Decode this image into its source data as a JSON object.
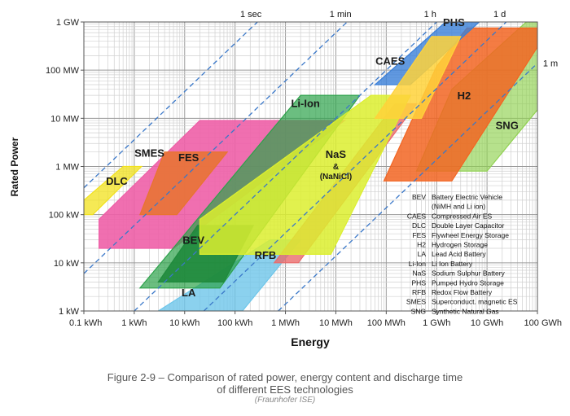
{
  "chart_data": {
    "type": "area",
    "title": "",
    "xlabel": "Energy",
    "ylabel": "Rated Power",
    "x_scale": "log",
    "y_scale": "log",
    "x_unit": "kWh",
    "y_unit": "kW",
    "xlim": [
      0.1,
      100000000
    ],
    "ylim": [
      1,
      1000000
    ],
    "x_ticks": [
      {
        "value": 0.1,
        "label": "0.1 kWh"
      },
      {
        "value": 1,
        "label": "1 kWh"
      },
      {
        "value": 10,
        "label": "10 kWh"
      },
      {
        "value": 100,
        "label": "100 kWh"
      },
      {
        "value": 1000,
        "label": "1 MWh"
      },
      {
        "value": 10000,
        "label": "10 MWh"
      },
      {
        "value": 100000,
        "label": "100 MWh"
      },
      {
        "value": 1000000,
        "label": "1 GWh"
      },
      {
        "value": 10000000,
        "label": "10 GWh"
      },
      {
        "value": 100000000,
        "label": "100 GWh"
      }
    ],
    "y_ticks": [
      {
        "value": 1,
        "label": "1 kW"
      },
      {
        "value": 10,
        "label": "10 kW"
      },
      {
        "value": 100,
        "label": "100 kW"
      },
      {
        "value": 1000,
        "label": "1 MW"
      },
      {
        "value": 10000,
        "label": "10 MW"
      },
      {
        "value": 100000,
        "label": "100 MW"
      },
      {
        "value": 1000000,
        "label": "1 GW"
      }
    ],
    "discharge_time_lines": [
      {
        "label": "1 sec",
        "hours": 0.000278
      },
      {
        "label": "1 min",
        "hours": 0.0167
      },
      {
        "label": "1 h",
        "hours": 1
      },
      {
        "label": "1 d",
        "hours": 24
      },
      {
        "label": "1 m",
        "hours": 720
      }
    ],
    "regions": [
      {
        "label": "SNG",
        "color": "#8fd14f",
        "opacity": 0.65,
        "label_at": [
          25000000,
          6000
        ],
        "points": [
          [
            400000,
            800
          ],
          [
            10000000,
            800
          ],
          [
            100000000,
            15000
          ],
          [
            100000000,
            1000000
          ],
          [
            60000000,
            1000000
          ],
          [
            2000000,
            40000
          ]
        ]
      },
      {
        "label": "H2",
        "color": "#f26522",
        "opacity": 0.85,
        "label_at": [
          3500000,
          25000
        ],
        "points": [
          [
            90000,
            500
          ],
          [
            2000000,
            500
          ],
          [
            100000000,
            300000
          ],
          [
            100000000,
            750000
          ],
          [
            4000000,
            750000
          ],
          [
            1000000,
            120000
          ]
        ]
      },
      {
        "label": "FES",
        "color": "#ee5fa7",
        "opacity": 0.9,
        "label_at": [
          12,
          1300
        ],
        "points": [
          [
            0.2,
            20
          ],
          [
            6,
            20
          ],
          [
            15000,
            9000
          ],
          [
            1000,
            9000
          ],
          [
            20,
            9000
          ],
          [
            0.2,
            80
          ]
        ]
      },
      {
        "label": "SMES",
        "color": "#e8742e",
        "opacity": 0.85,
        "label_at": [
          2,
          1600
        ],
        "points": [
          [
            1.3,
            100
          ],
          [
            7,
            100
          ],
          [
            70,
            2000
          ],
          [
            4,
            2000
          ]
        ]
      },
      {
        "label": "DLC",
        "color": "#f2e21c",
        "opacity": 0.75,
        "label_at": [
          0.45,
          420
        ],
        "points": [
          [
            0.1,
            100
          ],
          [
            0.15,
            100
          ],
          [
            1.4,
            1000
          ],
          [
            0.6,
            1000
          ],
          [
            0.1,
            200
          ]
        ]
      },
      {
        "label": "LA",
        "color": "#6ec6ea",
        "opacity": 0.8,
        "label_at": [
          12,
          2
        ],
        "points": [
          [
            3,
            1
          ],
          [
            140,
            1
          ],
          [
            2000,
            30
          ],
          [
            500,
            30
          ]
        ]
      },
      {
        "label": "RFB",
        "color": "#ea6b6b",
        "opacity": 0.8,
        "label_at": [
          400,
          12
        ],
        "points": [
          [
            600,
            10
          ],
          [
            1800,
            10
          ],
          [
            400000,
            20000
          ],
          [
            150000,
            20000
          ]
        ]
      },
      {
        "label": "Li-Ion",
        "color": "#2ca24a",
        "opacity": 0.7,
        "label_at": [
          2500,
          17000
        ],
        "points": [
          [
            1.3,
            3
          ],
          [
            50,
            3
          ],
          [
            30000,
            30000
          ],
          [
            2000,
            30000
          ]
        ]
      },
      {
        "label": "BEV",
        "color": "#1f8a3c",
        "opacity": 0.9,
        "label_at": [
          15,
          25
        ],
        "points": [
          [
            3,
            4
          ],
          [
            60,
            4
          ],
          [
            230,
            60
          ],
          [
            18,
            60
          ]
        ]
      },
      {
        "label": "NaS",
        "sub_label_1": "&",
        "sub_label_2": "(NaNiCl)",
        "color": "#dcef2f",
        "opacity": 0.85,
        "label_at": [
          10000,
          1500
        ],
        "points": [
          [
            20,
            15
          ],
          [
            8000,
            15
          ],
          [
            300000,
            30000
          ],
          [
            50000,
            30000
          ],
          [
            20,
            80
          ]
        ]
      },
      {
        "label": "PHS",
        "color": "#3a7fd8",
        "opacity": 0.8,
        "label_at": [
          2200000,
          830000
        ],
        "points": [
          [
            60000,
            50000
          ],
          [
            300000,
            50000
          ],
          [
            7000000,
            1000000
          ],
          [
            1500000,
            1000000
          ]
        ]
      },
      {
        "label": "CAES",
        "color": "#ffd23a",
        "opacity": 0.85,
        "label_at": [
          120000,
          130000
        ],
        "points": [
          [
            60000,
            10000
          ],
          [
            500000,
            10000
          ],
          [
            3000000,
            500000
          ],
          [
            800000,
            500000
          ]
        ]
      }
    ],
    "legend": [
      {
        "abbr": "BEV",
        "desc": "Battery  Electric Vehicle"
      },
      {
        "abbr": "",
        "desc": "(NiMH and Li ion)"
      },
      {
        "abbr": "CAES",
        "desc": "Compressed Air ES"
      },
      {
        "abbr": "DLC",
        "desc": "Double Layer Capacitor"
      },
      {
        "abbr": "FES",
        "desc": "Flywheel  Energy Storage"
      },
      {
        "abbr": "H2",
        "desc": "Hydrogen Storage"
      },
      {
        "abbr": "LA",
        "desc": "Lead Acid Battery"
      },
      {
        "abbr": "Li-Ion",
        "desc": "Li Ion Battery"
      },
      {
        "abbr": "NaS",
        "desc": "Sodium Sulphur Battery"
      },
      {
        "abbr": "PHS",
        "desc": "Pumped Hydro Storage"
      },
      {
        "abbr": "RFB",
        "desc": "Redox Flow  Battery"
      },
      {
        "abbr": "SMES",
        "desc": "Superconduct. magnetic ES"
      },
      {
        "abbr": "SNG",
        "desc": "Synthetic Natural Gas"
      }
    ]
  },
  "caption": {
    "line1": "Figure 2-9 – Comparison of rated power, energy content and discharge time",
    "line2": "of different EES technologies",
    "source": "(Fraunhofer ISE)"
  }
}
